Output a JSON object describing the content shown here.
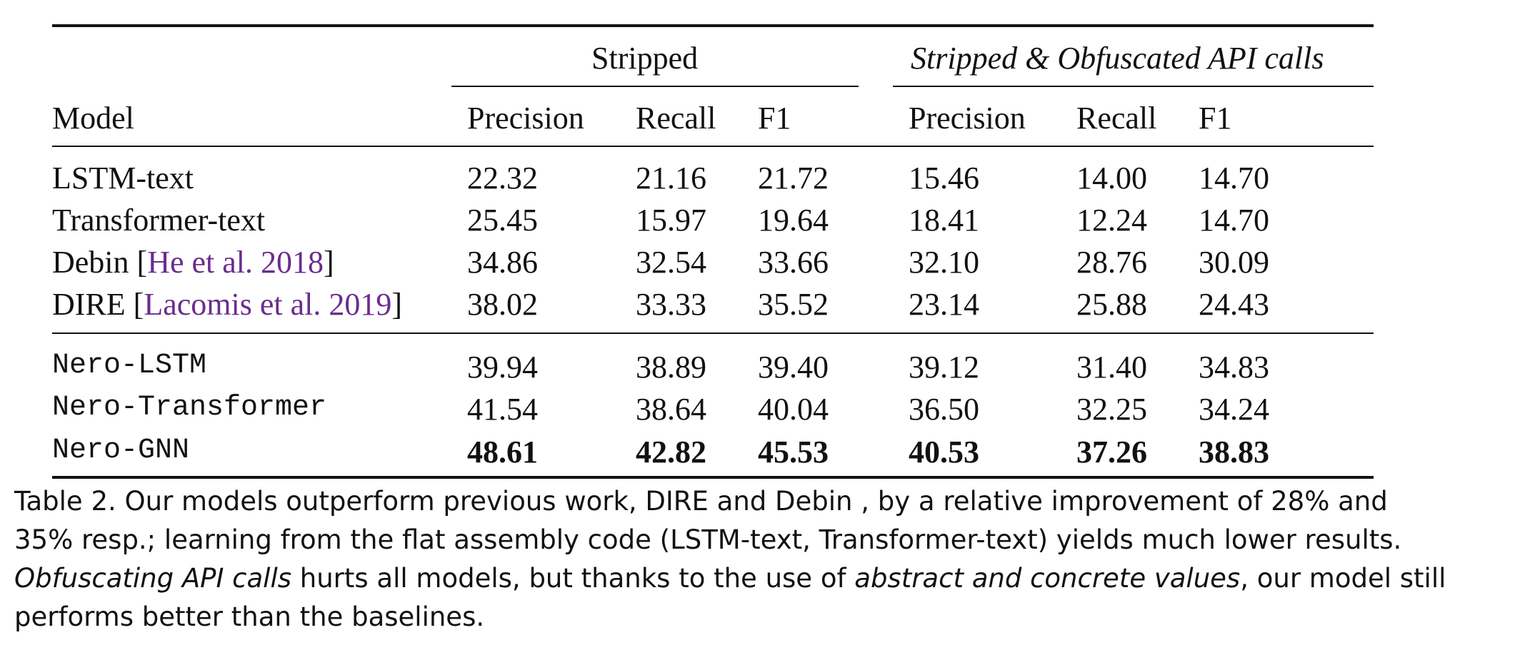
{
  "table": {
    "group_headers": {
      "stripped": "Stripped",
      "obfuscated": "Stripped & Obfuscated API calls"
    },
    "columns": {
      "model": "Model",
      "precision": "Precision",
      "recall": "Recall",
      "f1": "F1"
    },
    "rows": [
      {
        "model": "LSTM-text",
        "cite": "",
        "values": [
          "22.32",
          "21.16",
          "21.72",
          "15.46",
          "14.00",
          "14.70"
        ]
      },
      {
        "model": "Transformer-text",
        "cite": "",
        "values": [
          "25.45",
          "15.97",
          "19.64",
          "18.41",
          "12.24",
          "14.70"
        ]
      },
      {
        "model": "Debin [",
        "cite": "He et al. 2018",
        "close": "]",
        "values": [
          "34.86",
          "32.54",
          "33.66",
          "32.10",
          "28.76",
          "30.09"
        ]
      },
      {
        "model": "DIRE [",
        "cite": "Lacomis et al. 2019",
        "close": "]",
        "values": [
          "38.02",
          "33.33",
          "35.52",
          "23.14",
          "25.88",
          "24.43"
        ]
      },
      {
        "model": "Nero-LSTM",
        "values": [
          "39.94",
          "38.89",
          "39.40",
          "39.12",
          "31.40",
          "34.83"
        ]
      },
      {
        "model": "Nero-Transformer",
        "values": [
          "41.54",
          "38.64",
          "40.04",
          "36.50",
          "32.25",
          "34.24"
        ]
      },
      {
        "model": "Nero-GNN",
        "values": [
          "48.61",
          "42.82",
          "45.53",
          "40.53",
          "37.26",
          "38.83"
        ]
      }
    ]
  },
  "caption": {
    "line1": "Table 2.  Our models outperform previous work, DIRE and Debin , by a relative improvement of 28% and",
    "line2": "35% resp.; learning from the flat assembly code (LSTM-text, Transformer-text) yields much lower results.",
    "line3_italic_a": "Obfuscating API calls",
    "line3_text_a": " hurts all models, but thanks to the use of ",
    "line3_italic_b": "abstract and concrete values",
    "line3_text_b": ", our model still",
    "line4": "performs better than the baselines."
  }
}
